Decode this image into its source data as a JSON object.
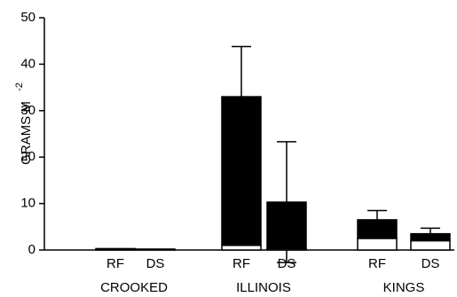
{
  "chart_data": {
    "type": "stacked-bar",
    "y_label": "GRAMS M",
    "y_label_superscript": "-2",
    "categories": [
      "RF",
      "DS",
      "RF",
      "DS",
      "RF",
      "DS"
    ],
    "groups": [
      "CROOKED",
      "ILLINOIS",
      "KINGS"
    ],
    "series": [
      {
        "color": "#ffffff",
        "values": [
          0.1,
          0.05,
          1,
          0.3,
          2.5,
          2
        ]
      },
      {
        "color": "#000000",
        "values": [
          0.2,
          0.15,
          32,
          10,
          4,
          1.5
        ],
        "errors": [
          0,
          0,
          10.8,
          13,
          2,
          1.2
        ]
      }
    ],
    "ylim": [
      0,
      50
    ],
    "yticks": [
      0,
      10,
      20,
      30,
      40,
      50
    ]
  }
}
